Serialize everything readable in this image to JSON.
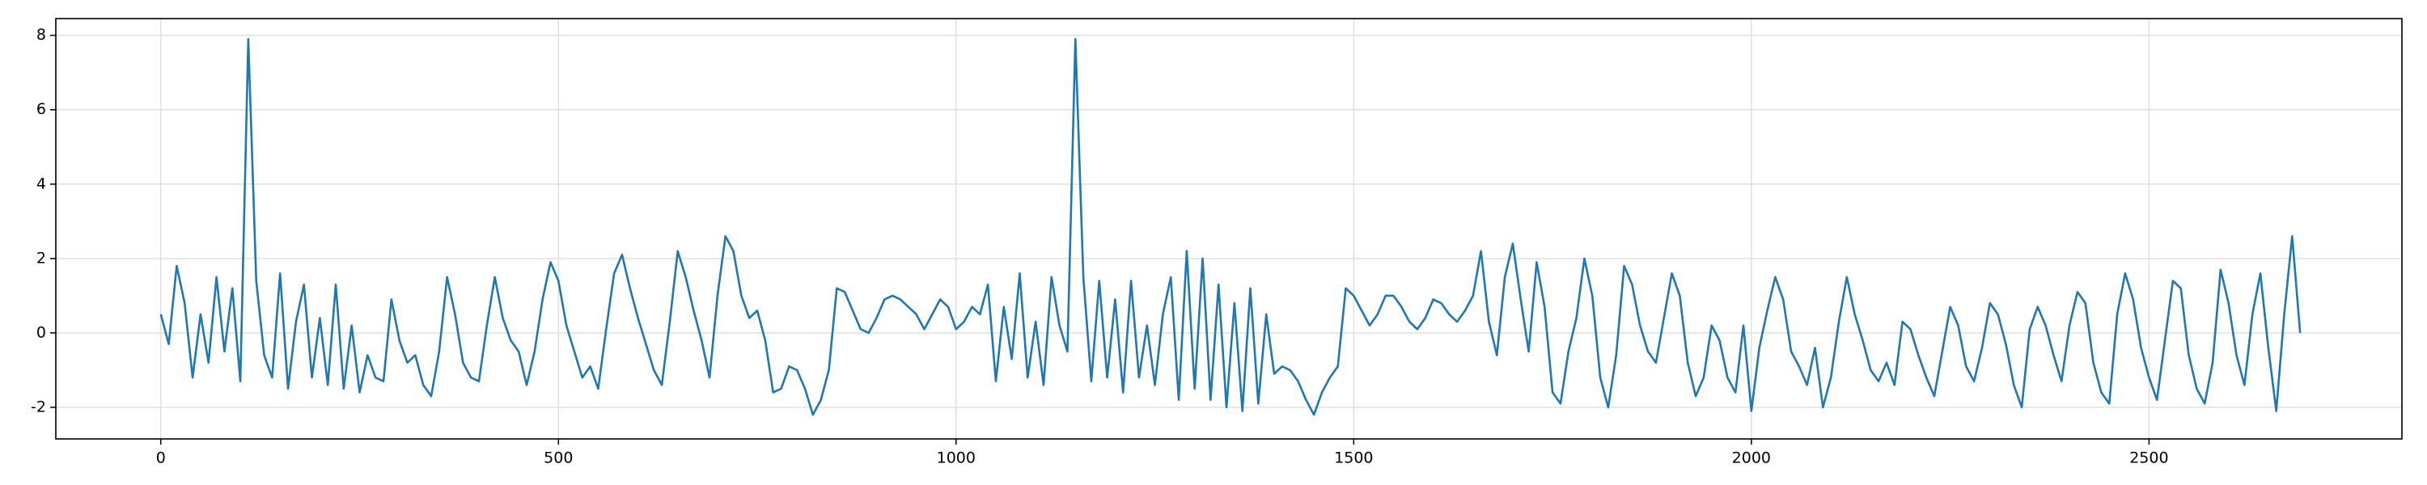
{
  "chart_data": {
    "type": "line",
    "x": [
      0,
      10,
      20,
      30,
      40,
      50,
      60,
      70,
      80,
      90,
      100,
      110,
      120,
      130,
      140,
      150,
      160,
      170,
      180,
      190,
      200,
      210,
      220,
      230,
      240,
      250,
      260,
      270,
      280,
      290,
      300,
      310,
      320,
      330,
      340,
      350,
      360,
      370,
      380,
      390,
      400,
      410,
      420,
      430,
      440,
      450,
      460,
      470,
      480,
      490,
      500,
      510,
      520,
      530,
      540,
      550,
      560,
      570,
      580,
      590,
      600,
      610,
      620,
      630,
      640,
      650,
      660,
      670,
      680,
      690,
      700,
      710,
      720,
      730,
      740,
      750,
      760,
      770,
      780,
      790,
      800,
      810,
      820,
      830,
      840,
      850,
      860,
      870,
      880,
      890,
      900,
      910,
      920,
      930,
      940,
      950,
      960,
      970,
      980,
      990,
      1000,
      1010,
      1020,
      1030,
      1040,
      1050,
      1060,
      1070,
      1080,
      1090,
      1100,
      1110,
      1120,
      1130,
      1140,
      1150,
      1160,
      1170,
      1180,
      1190,
      1200,
      1210,
      1220,
      1230,
      1240,
      1250,
      1260,
      1270,
      1280,
      1290,
      1300,
      1310,
      1320,
      1330,
      1340,
      1350,
      1360,
      1370,
      1380,
      1390,
      1400,
      1410,
      1420,
      1430,
      1440,
      1450,
      1460,
      1470,
      1480,
      1490,
      1500,
      1510,
      1520,
      1530,
      1540,
      1550,
      1560,
      1570,
      1580,
      1590,
      1600,
      1610,
      1620,
      1630,
      1640,
      1650,
      1660,
      1670,
      1680,
      1690,
      1700,
      1710,
      1720,
      1730,
      1740,
      1750,
      1760,
      1770,
      1780,
      1790,
      1800,
      1810,
      1820,
      1830,
      1840,
      1850,
      1860,
      1870,
      1880,
      1890,
      1900,
      1910,
      1920,
      1930,
      1940,
      1950,
      1960,
      1970,
      1980,
      1990,
      2000,
      2010,
      2020,
      2030,
      2040,
      2050,
      2060,
      2070,
      2080,
      2090,
      2100,
      2110,
      2120,
      2130,
      2140,
      2150,
      2160,
      2170,
      2180,
      2190,
      2200,
      2210,
      2220,
      2230,
      2240,
      2250,
      2260,
      2270,
      2280,
      2290,
      2300,
      2310,
      2320,
      2330,
      2340,
      2350,
      2360,
      2370,
      2380,
      2390,
      2400,
      2410,
      2420,
      2430,
      2440,
      2450,
      2460,
      2470,
      2480,
      2490,
      2500,
      2510,
      2520,
      2530,
      2540,
      2550,
      2560,
      2570,
      2580,
      2590,
      2600,
      2610,
      2620,
      2630,
      2640,
      2650,
      2660,
      2670,
      2680,
      2690
    ],
    "series": [
      {
        "color": "#1f77b4",
        "values": [
          0.5,
          -0.3,
          1.8,
          0.8,
          -1.2,
          0.5,
          -0.8,
          1.5,
          -0.5,
          1.2,
          -1.3,
          7.9,
          1.4,
          -0.6,
          -1.2,
          1.6,
          -1.5,
          0.3,
          1.3,
          -1.2,
          0.4,
          -1.4,
          1.3,
          -1.5,
          0.2,
          -1.6,
          -0.6,
          -1.2,
          -1.3,
          0.9,
          -0.2,
          -0.8,
          -0.6,
          -1.4,
          -1.7,
          -0.5,
          1.5,
          0.5,
          -0.8,
          -1.2,
          -1.3,
          0.2,
          1.5,
          0.4,
          -0.2,
          -0.5,
          -1.4,
          -0.5,
          0.9,
          1.9,
          1.4,
          0.2,
          -0.5,
          -1.2,
          -0.9,
          -1.5,
          0.1,
          1.6,
          2.1,
          1.2,
          0.4,
          -0.3,
          -1.0,
          -1.4,
          0.3,
          2.2,
          1.5,
          0.6,
          -0.2,
          -1.2,
          1.0,
          2.6,
          2.2,
          1.0,
          0.4,
          0.6,
          -0.2,
          -1.6,
          -1.5,
          -0.9,
          -1.0,
          -1.5,
          -2.2,
          -1.8,
          -1.0,
          1.2,
          1.1,
          0.6,
          0.1,
          0.0,
          0.4,
          0.9,
          1.0,
          0.9,
          0.7,
          0.5,
          0.1,
          0.5,
          0.9,
          0.7,
          0.1,
          0.3,
          0.7,
          0.5,
          1.3,
          -1.3,
          0.7,
          -0.7,
          1.6,
          -1.2,
          0.3,
          -1.4,
          1.5,
          0.2,
          -0.5,
          7.9,
          1.5,
          -1.3,
          1.4,
          -1.2,
          0.9,
          -1.6,
          1.4,
          -1.2,
          0.2,
          -1.4,
          0.5,
          1.5,
          -1.8,
          2.2,
          -1.5,
          2.0,
          -1.8,
          1.3,
          -2.0,
          0.8,
          -2.1,
          1.2,
          -1.9,
          0.5,
          -1.1,
          -0.9,
          -1.0,
          -1.3,
          -1.8,
          -2.2,
          -1.6,
          -1.2,
          -0.9,
          1.2,
          1.0,
          0.6,
          0.2,
          0.5,
          1.0,
          1.0,
          0.7,
          0.3,
          0.1,
          0.4,
          0.9,
          0.8,
          0.5,
          0.3,
          0.6,
          1.0,
          2.2,
          0.3,
          -0.6,
          1.5,
          2.4,
          0.9,
          -0.5,
          1.9,
          0.7,
          -1.6,
          -1.9,
          -0.5,
          0.4,
          2.0,
          1.0,
          -1.2,
          -2.0,
          -0.6,
          1.8,
          1.3,
          0.2,
          -0.5,
          -0.8,
          0.4,
          1.6,
          1.0,
          -0.8,
          -1.7,
          -1.2,
          0.2,
          -0.2,
          -1.2,
          -1.6,
          0.2,
          -2.1,
          -0.4,
          0.6,
          1.5,
          0.9,
          -0.5,
          -0.9,
          -1.4,
          -0.4,
          -2.0,
          -1.2,
          0.3,
          1.5,
          0.5,
          -0.2,
          -1.0,
          -1.3,
          -0.8,
          -1.4,
          0.3,
          0.1,
          -0.6,
          -1.2,
          -1.7,
          -0.5,
          0.7,
          0.2,
          -0.9,
          -1.3,
          -0.4,
          0.8,
          0.5,
          -0.3,
          -1.4,
          -2.0,
          0.1,
          0.7,
          0.2,
          -0.6,
          -1.3,
          0.2,
          1.1,
          0.8,
          -0.8,
          -1.6,
          -1.9,
          0.5,
          1.6,
          0.9,
          -0.4,
          -1.2,
          -1.8,
          -0.2,
          1.4,
          1.2,
          -0.6,
          -1.5,
          -1.9,
          -0.8,
          1.7,
          0.8,
          -0.6,
          -1.4,
          0.5,
          1.6,
          -0.4,
          -2.1,
          0.5,
          2.6,
          0.0
        ]
      }
    ],
    "xlim": [
      -132,
      2818
    ],
    "ylim": [
      -2.85,
      8.45
    ],
    "xticks": [
      0,
      500,
      1000,
      1500,
      2000,
      2500
    ],
    "yticks": [
      -2,
      0,
      2,
      4,
      6,
      8
    ],
    "grid": true
  }
}
